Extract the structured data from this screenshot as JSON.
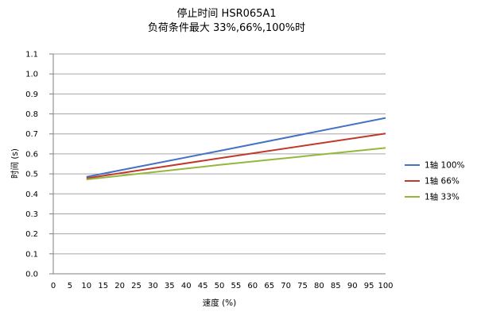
{
  "chart_data": {
    "type": "line",
    "title": "停止时间 HSR065A1",
    "subtitle": "负荷条件最大 33%,66%,100%时",
    "xlabel": "速度 (%)",
    "ylabel": "时间 (s)",
    "xlim": [
      0,
      100
    ],
    "ylim": [
      0.0,
      1.1
    ],
    "x_ticks": [
      0,
      5,
      10,
      15,
      20,
      25,
      30,
      35,
      40,
      45,
      50,
      55,
      60,
      65,
      70,
      75,
      80,
      85,
      90,
      95,
      100
    ],
    "y_ticks": [
      "0.0",
      "0.1",
      "0.2",
      "0.3",
      "0.4",
      "0.5",
      "0.6",
      "0.7",
      "0.8",
      "0.9",
      "1.0",
      "1.1"
    ],
    "grid": "horizontal",
    "legend_position": "right",
    "series": [
      {
        "name": "1轴 100%",
        "color": "#4472c4",
        "x": [
          10,
          50,
          100
        ],
        "y": [
          0.485,
          0.615,
          0.78
        ]
      },
      {
        "name": "1轴 66%",
        "color": "#c0392b",
        "x": [
          10,
          50,
          100
        ],
        "y": [
          0.478,
          0.578,
          0.702
        ]
      },
      {
        "name": "1轴 33%",
        "color": "#92b83c",
        "x": [
          10,
          50,
          100
        ],
        "y": [
          0.472,
          0.545,
          0.63
        ]
      }
    ]
  }
}
